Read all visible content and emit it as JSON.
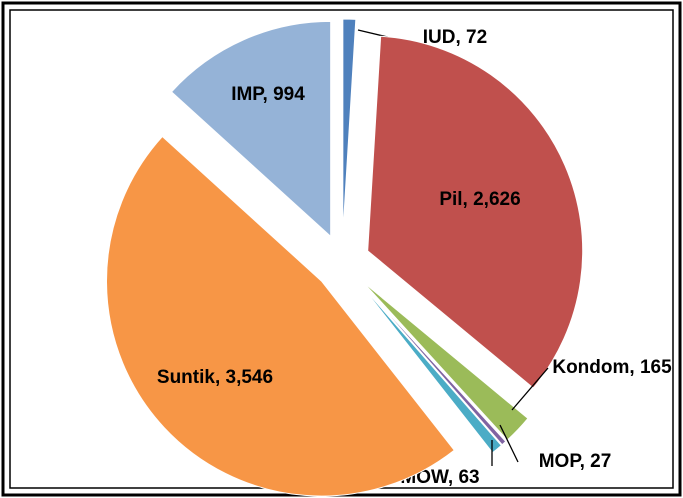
{
  "chart_data": {
    "type": "pie",
    "values": [
      72,
      2626,
      165,
      27,
      63,
      3546,
      994
    ],
    "value_labels": [
      "IUD, 72",
      "Pil, 2,626",
      "Kondom, 165",
      "MOP, 27",
      "MOW, 63",
      "Suntik, 3,546",
      "IMP, 994"
    ],
    "colors": [
      "#4f81bd",
      "#c0504d",
      "#9bbb59",
      "#8064a2",
      "#4bacc6",
      "#f79646",
      "#95b3d7"
    ]
  }
}
